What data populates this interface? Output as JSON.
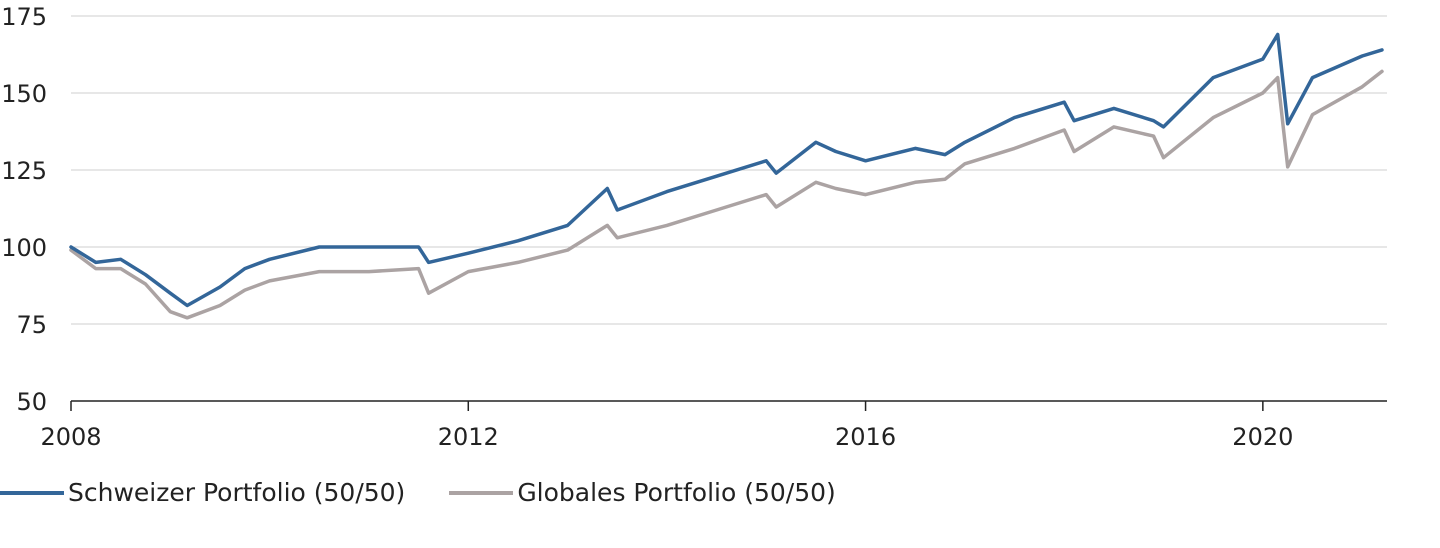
{
  "chart_data": {
    "type": "line",
    "title": "",
    "xlabel": "",
    "ylabel": "",
    "xlim": [
      2008,
      2021.25
    ],
    "ylim": [
      50,
      175
    ],
    "x_ticks": [
      2008,
      2012,
      2016,
      2020
    ],
    "x_tick_labels": [
      "2008",
      "2012",
      "2016",
      "2020"
    ],
    "y_ticks": [
      50,
      75,
      100,
      125,
      150,
      175
    ],
    "y_tick_labels": [
      "50",
      "75",
      "100",
      "125",
      "150",
      "175"
    ],
    "grid": "horizontal",
    "legend_position": "bottom-left",
    "x": [
      2008.0,
      2008.25,
      2008.5,
      2008.75,
      2009.0,
      2009.17,
      2009.5,
      2009.75,
      2010.0,
      2010.5,
      2011.0,
      2011.5,
      2011.6,
      2012.0,
      2012.5,
      2013.0,
      2013.4,
      2013.5,
      2014.0,
      2014.5,
      2015.0,
      2015.1,
      2015.5,
      2015.7,
      2016.0,
      2016.5,
      2016.8,
      2017.0,
      2017.5,
      2018.0,
      2018.1,
      2018.5,
      2018.9,
      2019.0,
      2019.5,
      2020.0,
      2020.15,
      2020.25,
      2020.5,
      2021.0,
      2021.2
    ],
    "series": [
      {
        "name": "Schweizer Portfolio (50/50)",
        "color": "#336699",
        "values": [
          100,
          95,
          96,
          91,
          85,
          81,
          87,
          93,
          96,
          100,
          100,
          100,
          95,
          98,
          102,
          107,
          119,
          112,
          118,
          123,
          128,
          124,
          134,
          131,
          128,
          132,
          130,
          134,
          142,
          147,
          141,
          145,
          141,
          139,
          155,
          161,
          169,
          140,
          155,
          162,
          164
        ]
      },
      {
        "name": "Globales Portfolio (50/50)",
        "color": "#aba3a3",
        "values": [
          99,
          93,
          93,
          88,
          79,
          77,
          81,
          86,
          89,
          92,
          92,
          93,
          85,
          92,
          95,
          99,
          107,
          103,
          107,
          112,
          117,
          113,
          121,
          119,
          117,
          121,
          122,
          127,
          132,
          138,
          131,
          139,
          136,
          129,
          142,
          150,
          155,
          126,
          143,
          152,
          157
        ]
      }
    ]
  }
}
